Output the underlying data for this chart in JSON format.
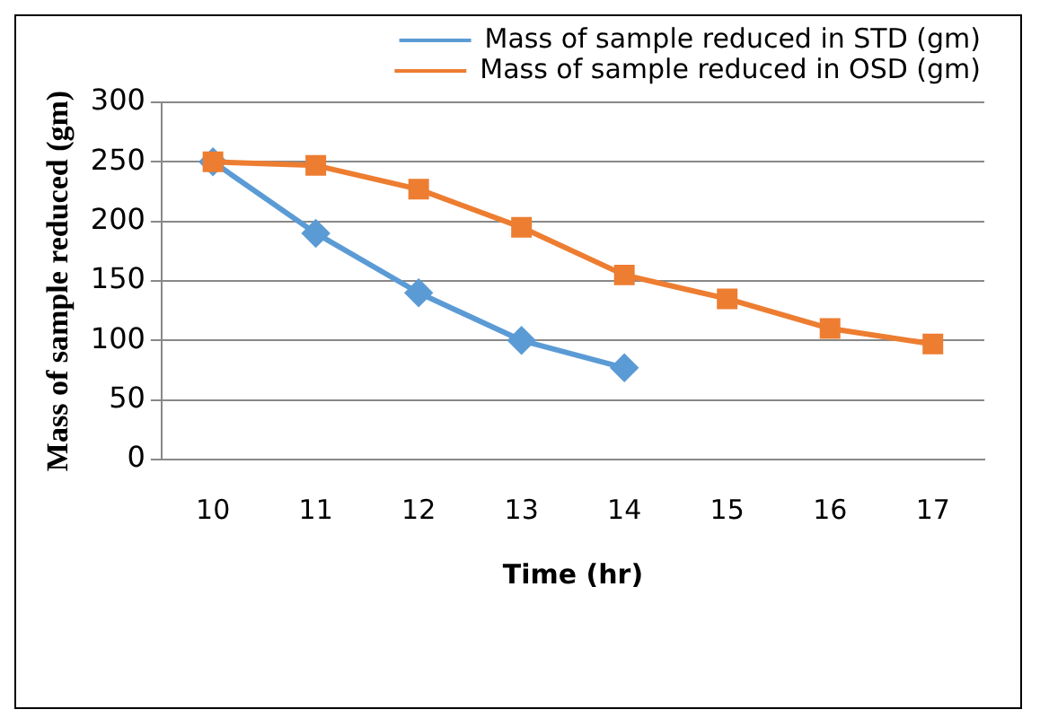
{
  "chart_data": {
    "type": "line",
    "xlabel": "Time (hr)",
    "ylabel": "Mass of sample reduced (gm)",
    "categories": [
      "10",
      "11",
      "12",
      "13",
      "14",
      "15",
      "16",
      "17"
    ],
    "series": [
      {
        "name": "Mass of sample reduced in STD (gm)",
        "color": "#5b9bd5",
        "marker": "diamond",
        "values": [
          250,
          190,
          140,
          100,
          77,
          null,
          null,
          null
        ]
      },
      {
        "name": "Mass of sample reduced in OSD (gm)",
        "color": "#ed7d31",
        "marker": "square",
        "values": [
          250,
          247,
          227,
          195,
          155,
          135,
          110,
          97
        ]
      }
    ],
    "ylim": [
      0,
      300
    ],
    "yticks": [
      0,
      50,
      100,
      150,
      200,
      250,
      300
    ],
    "grid": "y",
    "legend": "top"
  }
}
